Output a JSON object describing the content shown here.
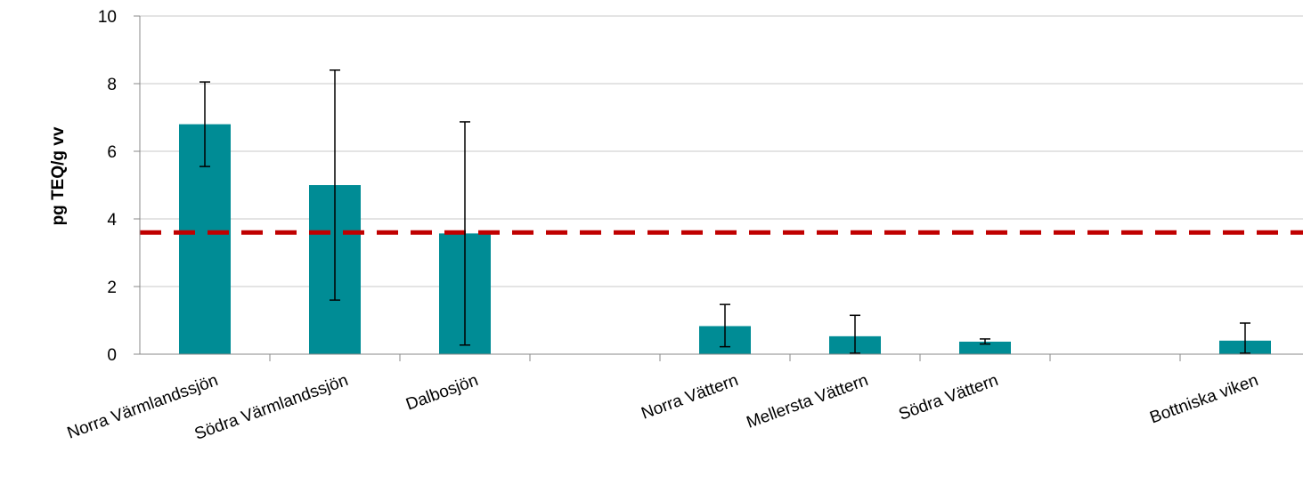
{
  "chart_data": {
    "type": "bar",
    "title": "",
    "ylabel": "pg TEQ/g vv",
    "xlabel": "",
    "ylim": [
      0,
      10
    ],
    "yticks": [
      0,
      2,
      4,
      6,
      8,
      10
    ],
    "grid": true,
    "legend": "none",
    "categories": [
      "Norra Värmlandssjön",
      "Södra Värmlandssjön",
      "Dalbosjön",
      "",
      "Norra Vättern",
      "Mellersta Vättern",
      "Södra Vättern",
      "",
      "Bottniska viken"
    ],
    "values": [
      6.8,
      5.0,
      3.57,
      null,
      0.83,
      0.53,
      0.37,
      null,
      0.4
    ],
    "error_low": [
      5.55,
      1.6,
      0.27,
      null,
      0.22,
      0.03,
      0.3,
      null,
      0.03
    ],
    "error_high": [
      8.05,
      8.4,
      6.87,
      null,
      1.47,
      1.15,
      0.45,
      null,
      0.92
    ],
    "reference_line": {
      "value": 3.6,
      "style": "dashed",
      "color": "#c00000"
    },
    "colors": {
      "bar": "#008c95",
      "grid": "#c8c8c8",
      "axis": "#888888"
    }
  }
}
